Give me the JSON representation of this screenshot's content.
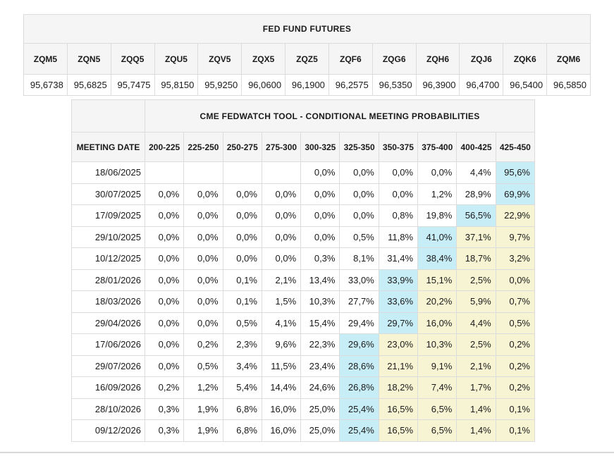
{
  "colors": {
    "header_bg": "#f5f5f5",
    "border": "#dcdcdc",
    "text": "#1a1a1a",
    "highlight_cyan": "#c7edf6",
    "highlight_yellow": "#f6f4d2",
    "bottom_rule": "#d9d9d9"
  },
  "futures": {
    "title": "FED FUND FUTURES",
    "columns": [
      "ZQM5",
      "ZQN5",
      "ZQQ5",
      "ZQU5",
      "ZQV5",
      "ZQX5",
      "ZQZ5",
      "ZQF6",
      "ZQG6",
      "ZQH6",
      "ZQJ6",
      "ZQK6",
      "ZQM6"
    ],
    "prices": [
      "95,6738",
      "95,6825",
      "95,7475",
      "95,8150",
      "95,9250",
      "96,0600",
      "96,1900",
      "96,2575",
      "96,5350",
      "96,3900",
      "96,4700",
      "96,5400",
      "96,5850"
    ]
  },
  "fedwatch": {
    "title": "CME FEDWATCH TOOL - CONDITIONAL MEETING PROBABILITIES",
    "date_header": "MEETING DATE",
    "rate_columns": [
      "200-225",
      "225-250",
      "250-275",
      "275-300",
      "300-325",
      "325-350",
      "350-375",
      "375-400",
      "400-425",
      "425-450"
    ],
    "rows": [
      {
        "date": "18/06/2025",
        "values": [
          "",
          "",
          "",
          "",
          "0,0%",
          "0,0%",
          "0,0%",
          "0,0%",
          "4,4%",
          "95,6%"
        ],
        "bg": [
          "",
          "",
          "",
          "",
          "",
          "",
          "",
          "",
          "",
          "c"
        ]
      },
      {
        "date": "30/07/2025",
        "values": [
          "0,0%",
          "0,0%",
          "0,0%",
          "0,0%",
          "0,0%",
          "0,0%",
          "0,0%",
          "1,2%",
          "28,9%",
          "69,9%"
        ],
        "bg": [
          "",
          "",
          "",
          "",
          "",
          "",
          "",
          "",
          "",
          "c"
        ]
      },
      {
        "date": "17/09/2025",
        "values": [
          "0,0%",
          "0,0%",
          "0,0%",
          "0,0%",
          "0,0%",
          "0,0%",
          "0,8%",
          "19,8%",
          "56,5%",
          "22,9%"
        ],
        "bg": [
          "",
          "",
          "",
          "",
          "",
          "",
          "",
          "",
          "c",
          "y"
        ]
      },
      {
        "date": "29/10/2025",
        "values": [
          "0,0%",
          "0,0%",
          "0,0%",
          "0,0%",
          "0,0%",
          "0,5%",
          "11,8%",
          "41,0%",
          "37,1%",
          "9,7%"
        ],
        "bg": [
          "",
          "",
          "",
          "",
          "",
          "",
          "",
          "c",
          "y",
          "y"
        ]
      },
      {
        "date": "10/12/2025",
        "values": [
          "0,0%",
          "0,0%",
          "0,0%",
          "0,0%",
          "0,3%",
          "8,1%",
          "31,4%",
          "38,4%",
          "18,7%",
          "3,2%"
        ],
        "bg": [
          "",
          "",
          "",
          "",
          "",
          "",
          "",
          "c",
          "y",
          "y"
        ]
      },
      {
        "date": "28/01/2026",
        "values": [
          "0,0%",
          "0,0%",
          "0,1%",
          "2,1%",
          "13,4%",
          "33,0%",
          "33,9%",
          "15,1%",
          "2,5%",
          "0,0%"
        ],
        "bg": [
          "",
          "",
          "",
          "",
          "",
          "",
          "c",
          "y",
          "y",
          "y"
        ]
      },
      {
        "date": "18/03/2026",
        "values": [
          "0,0%",
          "0,0%",
          "0,1%",
          "1,5%",
          "10,3%",
          "27,7%",
          "33,6%",
          "20,2%",
          "5,9%",
          "0,7%"
        ],
        "bg": [
          "",
          "",
          "",
          "",
          "",
          "",
          "c",
          "y",
          "y",
          "y"
        ]
      },
      {
        "date": "29/04/2026",
        "values": [
          "0,0%",
          "0,0%",
          "0,5%",
          "4,1%",
          "15,4%",
          "29,4%",
          "29,7%",
          "16,0%",
          "4,4%",
          "0,5%"
        ],
        "bg": [
          "",
          "",
          "",
          "",
          "",
          "",
          "c",
          "y",
          "y",
          "y"
        ]
      },
      {
        "date": "17/06/2026",
        "values": [
          "0,0%",
          "0,2%",
          "2,3%",
          "9,6%",
          "22,3%",
          "29,6%",
          "23,0%",
          "10,3%",
          "2,5%",
          "0,2%"
        ],
        "bg": [
          "",
          "",
          "",
          "",
          "",
          "c",
          "y",
          "y",
          "y",
          "y"
        ]
      },
      {
        "date": "29/07/2026",
        "values": [
          "0,0%",
          "0,5%",
          "3,4%",
          "11,5%",
          "23,4%",
          "28,6%",
          "21,1%",
          "9,1%",
          "2,1%",
          "0,2%"
        ],
        "bg": [
          "",
          "",
          "",
          "",
          "",
          "c",
          "y",
          "y",
          "y",
          "y"
        ]
      },
      {
        "date": "16/09/2026",
        "values": [
          "0,2%",
          "1,2%",
          "5,4%",
          "14,4%",
          "24,6%",
          "26,8%",
          "18,2%",
          "7,4%",
          "1,7%",
          "0,2%"
        ],
        "bg": [
          "",
          "",
          "",
          "",
          "",
          "c",
          "y",
          "y",
          "y",
          "y"
        ]
      },
      {
        "date": "28/10/2026",
        "values": [
          "0,3%",
          "1,9%",
          "6,8%",
          "16,0%",
          "25,0%",
          "25,4%",
          "16,5%",
          "6,5%",
          "1,4%",
          "0,1%"
        ],
        "bg": [
          "",
          "",
          "",
          "",
          "",
          "c",
          "y",
          "y",
          "y",
          "y"
        ]
      },
      {
        "date": "09/12/2026",
        "values": [
          "0,3%",
          "1,9%",
          "6,8%",
          "16,0%",
          "25,0%",
          "25,4%",
          "16,5%",
          "6,5%",
          "1,4%",
          "0,1%"
        ],
        "bg": [
          "",
          "",
          "",
          "",
          "",
          "c",
          "y",
          "y",
          "y",
          "y"
        ]
      }
    ]
  }
}
